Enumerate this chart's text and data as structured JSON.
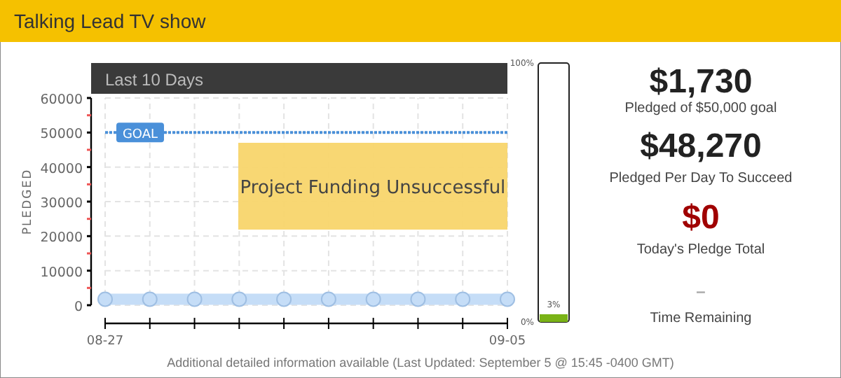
{
  "chart_data": [
    {
      "type": "line",
      "title": "Talking Lead TV show",
      "subtitle": "Last 10 Days",
      "ylabel": "PLEDGED",
      "categories": [
        "08-27",
        null,
        null,
        null,
        null,
        null,
        null,
        null,
        null,
        "09-05"
      ],
      "series": [
        {
          "color": "#c5ddf7",
          "values": [
            1730,
            1730,
            1730,
            1730,
            1730,
            1730,
            1730,
            1730,
            1730,
            1730
          ]
        }
      ],
      "ylim": [
        0,
        60000
      ],
      "yticks": [
        0,
        {
          "value": 5000,
          "label": null
        },
        10000,
        {
          "value": 15000,
          "label": null
        },
        20000,
        {
          "value": 25000,
          "label": null
        },
        30000,
        {
          "value": 35000,
          "label": null
        },
        40000,
        {
          "value": 45000,
          "label": null
        },
        50000,
        {
          "value": 55000,
          "label": null
        },
        60000
      ],
      "grid": true,
      "marker": "circle",
      "ref_lines": [
        {
          "axis": "y",
          "value": 50000,
          "label": "GOAL",
          "color": "#4a90d9",
          "line_style": "dotted"
        }
      ],
      "annotations": [
        "Project Funding Unsuccessful",
        "Additional detailed information available (Last Updated: September 5 @ 15:45 -0400 GMT)"
      ]
    },
    {
      "type": "bar",
      "categories": [
        null
      ],
      "values": [
        3
      ],
      "colors": [
        "#7ab317"
      ],
      "value_labels": [
        "3%"
      ],
      "ylim": [
        0,
        100
      ],
      "yticks": [
        {
          "value": 0,
          "label": "0%"
        },
        {
          "value": 100,
          "label": "100%"
        }
      ]
    },
    {
      "type": "other",
      "annotations": [
        "$1,730",
        "Pledged of $50,000 goal",
        "$48,270",
        "Pledged Per Day To Succeed",
        "$0",
        "Today's Pledge Total",
        "–",
        "Time Remaining"
      ]
    }
  ]
}
